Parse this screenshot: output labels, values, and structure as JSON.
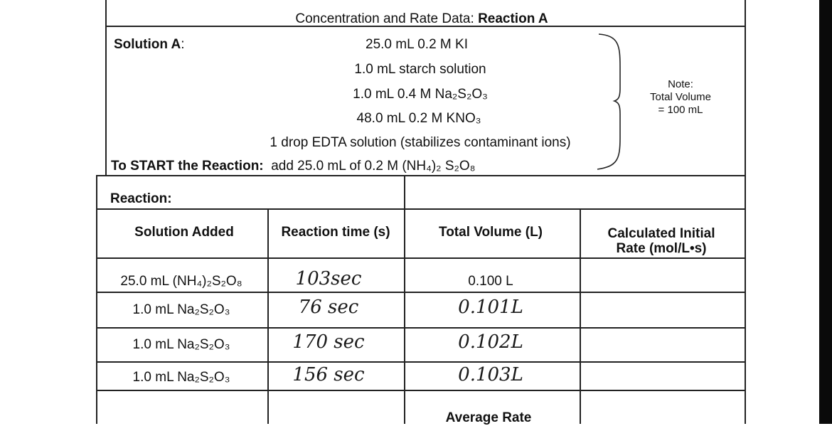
{
  "header": {
    "title": "Concentration and Rate Data:",
    "title_bold": "Reaction A"
  },
  "solution_a": {
    "label": "Solution A",
    "items": [
      "25.0 mL 0.2 M KI",
      "1.0 mL starch solution",
      "1.0 mL 0.4 M Na₂S₂O₃",
      "48.0 mL 0.2 M KNO₃",
      "1 drop EDTA solution (stabilizes contaminant ions)"
    ]
  },
  "start": {
    "label": "To START the Reaction:",
    "text": "add 25.0 mL of 0.2 M (NH₄)₂ S₂O₈"
  },
  "note": [
    "Note:",
    "Total Volume",
    "= 100 mL"
  ],
  "table": {
    "section_label": "Reaction:",
    "headers": [
      "Solution Added",
      "Reaction time (s)",
      "Total Volume (L)",
      "Calculated Initial Rate (mol/L•s)"
    ],
    "rows": [
      [
        "25.0 mL (NH₄)₂S₂O₈",
        "103sec",
        "0.100 L"
      ],
      [
        "1.0 mL Na₂S₂O₃",
        "76 sec",
        "0.101L"
      ],
      [
        "1.0 mL Na₂S₂O₃",
        "170 sec",
        "0.102L"
      ],
      [
        "1.0 mL Na₂S₂O₃",
        "156 sec",
        "0.103L"
      ]
    ],
    "footer": "Average Rate"
  }
}
